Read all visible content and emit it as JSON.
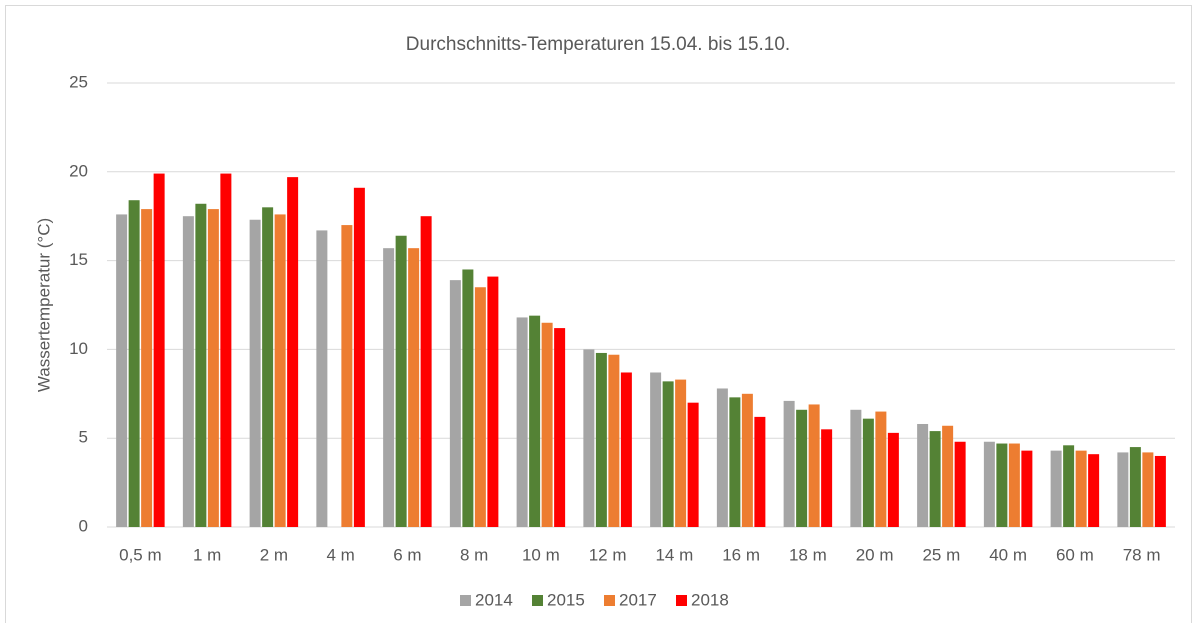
{
  "chart_data": {
    "type": "bar",
    "title": "Durchschnitts-Temperaturen  15.04. bis 15.10.",
    "y_label": "Wassertemperatur (°C)",
    "categories": [
      "0,5 m",
      "1 m",
      "2 m",
      "4 m",
      "6 m",
      "8 m",
      "10 m",
      "12 m",
      "14 m",
      "16 m",
      "18 m",
      "20 m",
      "25 m",
      "40 m",
      "60 m",
      "78 m"
    ],
    "series": [
      {
        "name": "2014",
        "color": "#a5a5a5",
        "values": [
          17.6,
          17.5,
          17.3,
          16.7,
          15.7,
          13.9,
          11.8,
          10.0,
          8.7,
          7.8,
          7.1,
          6.6,
          5.8,
          4.8,
          4.3,
          4.2
        ]
      },
      {
        "name": "2015",
        "color": "#548235",
        "values": [
          18.4,
          18.2,
          18.0,
          null,
          16.4,
          14.5,
          11.9,
          9.8,
          8.2,
          7.3,
          6.6,
          6.1,
          5.4,
          4.7,
          4.6,
          4.5
        ]
      },
      {
        "name": "2017",
        "color": "#ed7d31",
        "values": [
          17.9,
          17.9,
          17.6,
          17.0,
          15.7,
          13.5,
          11.5,
          9.7,
          8.3,
          7.5,
          6.9,
          6.5,
          5.7,
          4.7,
          4.3,
          4.2
        ]
      },
      {
        "name": "2018",
        "color": "#ff0000",
        "values": [
          19.9,
          19.9,
          19.7,
          19.1,
          17.5,
          14.1,
          11.2,
          8.7,
          7.0,
          6.2,
          5.5,
          5.3,
          4.8,
          4.3,
          4.1,
          4.0
        ]
      }
    ],
    "ylim": [
      0,
      25
    ],
    "yticks": [
      0,
      5,
      10,
      15,
      20,
      25
    ],
    "grid": true,
    "legend": "bottom"
  }
}
